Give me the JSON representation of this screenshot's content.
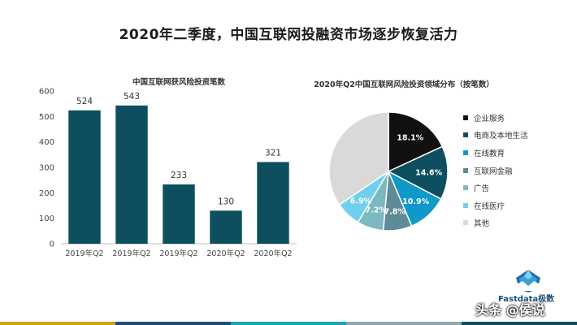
{
  "main_title": "2020年二季度，中国互联网投融资市场逐步恢复活力",
  "chart_data": [
    {
      "type": "bar",
      "title": "中国互联网获风险投资笔数",
      "categories": [
        "2019年Q2",
        "2019年Q2",
        "2019年Q2",
        "2020年Q2",
        "2020年Q2"
      ],
      "values": [
        524,
        543,
        233,
        130,
        321
      ],
      "ylim": [
        0,
        600
      ],
      "yticks": [
        0,
        100,
        200,
        300,
        400,
        500,
        600
      ],
      "grid": false,
      "color": "#0d4f5f"
    },
    {
      "type": "pie",
      "title": "2020年Q2中国互联网风险投资领域分布（按笔数）",
      "legend_position": "right",
      "slices": [
        {
          "label": "企业服务",
          "value": 18.1,
          "text": "18.1%",
          "color": "#111111"
        },
        {
          "label": "电商及本地生活",
          "value": 14.6,
          "text": "14.6%",
          "color": "#0d4f5f"
        },
        {
          "label": "在线教育",
          "value": 10.9,
          "text": "10.9%",
          "color": "#1098c9"
        },
        {
          "label": "互联网金融",
          "value": 7.8,
          "text": "7.8%",
          "color": "#5f8a97"
        },
        {
          "label": "广告",
          "value": 7.2,
          "text": "7.2%",
          "color": "#7cb9c0"
        },
        {
          "label": "在线医疗",
          "value": 6.9,
          "text": "6.9%",
          "color": "#6fd0ee"
        },
        {
          "label": "其他",
          "value": 34.5,
          "text": "",
          "color": "#d9d9d9"
        }
      ]
    }
  ],
  "logo_text": "Fastdata极数",
  "watermark": "头条 @侯说",
  "footer_colors": [
    "#d4a017",
    "#1f4e79",
    "#19a3b5",
    "#8fa9b3",
    "#0d4f5f"
  ]
}
